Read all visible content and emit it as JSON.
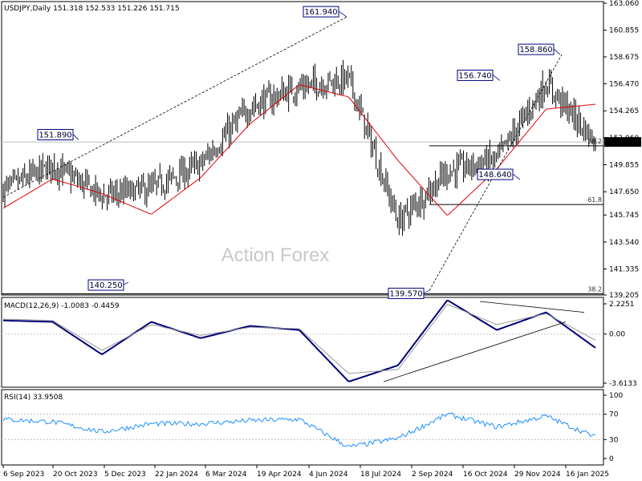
{
  "colors": {
    "candle": "#000000",
    "ma": "#e00000",
    "macd_line": "#00007a",
    "signal_line": "#999999",
    "rsi": "#1e90ff",
    "label_border": "#000080",
    "label_text": "#000033",
    "watermark": "#c8c8c8",
    "price_tag_bg": "#000000",
    "price_tag_text": "#ffffff"
  },
  "watermark": "Action Forex",
  "main_panel": {
    "header": "USDJPY,Daily  151.318 152.533 151.226 151.715",
    "y_ticks": [
      "163.060",
      "160.855",
      "158.675",
      "156.470",
      "154.265",
      "152.060",
      "149.855",
      "147.650",
      "145.745",
      "143.540",
      "141.335",
      "139.205"
    ],
    "current_price": "151.715",
    "annotations": [
      "161.940",
      "151.890",
      "140.250",
      "139.570",
      "156.740",
      "148.640",
      "158.860"
    ],
    "fib_labels": [
      "38.2",
      "61.8",
      "38.2"
    ]
  },
  "macd_panel": {
    "header": "MACD(12,26,9) -1.0083 -0.4459",
    "y_ticks": [
      "2.2251",
      "0.00",
      "-3.6133"
    ]
  },
  "rsi_panel": {
    "header": "RSI(14) 33.9508",
    "y_ticks": [
      "100",
      "70",
      "30",
      "0"
    ]
  },
  "x_ticks": [
    "6 Sep 2023",
    "20 Oct 2023",
    "5 Dec 2023",
    "22 Jan 2024",
    "6 Mar 2024",
    "19 Apr 2024",
    "4 Jun 2024",
    "18 Jul 2024",
    "2 Sep 2024",
    "16 Oct 2024",
    "29 Nov 2024",
    "16 Jan 2025"
  ],
  "chart_data": [
    {
      "type": "candlestick",
      "title": "USDJPY,Daily",
      "ylim": [
        139.205,
        163.06
      ],
      "x": [
        "6 Sep 2023",
        "20 Oct 2023",
        "5 Dec 2023",
        "22 Jan 2024",
        "6 Mar 2024",
        "19 Apr 2024",
        "4 Jun 2024",
        "18 Jul 2024",
        "2 Sep 2024",
        "16 Oct 2024",
        "29 Nov 2024",
        "16 Jan 2025",
        "latest"
      ],
      "series": [
        {
          "values": [
            147.8,
            149.8,
            147.3,
            147.9,
            149.9,
            154.6,
            156.2,
            156.9,
            145.2,
            149.3,
            150.3,
            156.5,
            151.7
          ]
        },
        {
          "name": "MA",
          "values": [
            146.3,
            148.7,
            147.5,
            145.8,
            148.8,
            153.2,
            156.4,
            155.4,
            150.2,
            145.7,
            149.5,
            154.4,
            154.8
          ]
        }
      ],
      "ohlc_last": {
        "open": 151.318,
        "high": 152.533,
        "low": 151.226,
        "close": 151.715
      },
      "marked_levels": [
        161.94,
        151.89,
        140.25,
        139.57,
        156.74,
        148.64,
        158.86
      ],
      "fib_levels": [
        {
          "label": "38.2",
          "value": 151.4
        },
        {
          "label": "61.8",
          "value": 146.6
        },
        {
          "label": "38.2",
          "value": 139.3
        }
      ]
    },
    {
      "type": "line",
      "title": "MACD(12,26,9)",
      "ylim": [
        -3.6133,
        2.2251
      ],
      "x": [
        "6 Sep 2023",
        "20 Oct 2023",
        "5 Dec 2023",
        "22 Jan 2024",
        "6 Mar 2024",
        "19 Apr 2024",
        "4 Jun 2024",
        "18 Jul 2024",
        "2 Sep 2024",
        "16 Oct 2024",
        "29 Nov 2024",
        "16 Jan 2025",
        "latest"
      ],
      "series": [
        {
          "values": [
            1.0,
            0.9,
            -1.5,
            0.9,
            -0.3,
            0.6,
            0.3,
            -3.5,
            -2.3,
            2.5,
            0.3,
            1.6,
            -1.0083
          ]
        },
        {
          "values": [
            1.1,
            1.0,
            -1.2,
            0.7,
            -0.1,
            0.5,
            0.4,
            -2.9,
            -2.6,
            2.2,
            0.7,
            1.5,
            -0.4459
          ]
        }
      ]
    },
    {
      "type": "line",
      "title": "RSI(14)",
      "ylim": [
        0,
        100
      ],
      "x": [
        "6 Sep 2023",
        "20 Oct 2023",
        "5 Dec 2023",
        "22 Jan 2024",
        "6 Mar 2024",
        "19 Apr 2024",
        "4 Jun 2024",
        "18 Jul 2024",
        "2 Sep 2024",
        "16 Oct 2024",
        "29 Nov 2024",
        "16 Jan 2025",
        "latest"
      ],
      "series": [
        {
          "values": [
            62,
            58,
            42,
            55,
            55,
            60,
            62,
            18,
            32,
            70,
            50,
            67,
            33.9508
          ]
        }
      ]
    }
  ]
}
